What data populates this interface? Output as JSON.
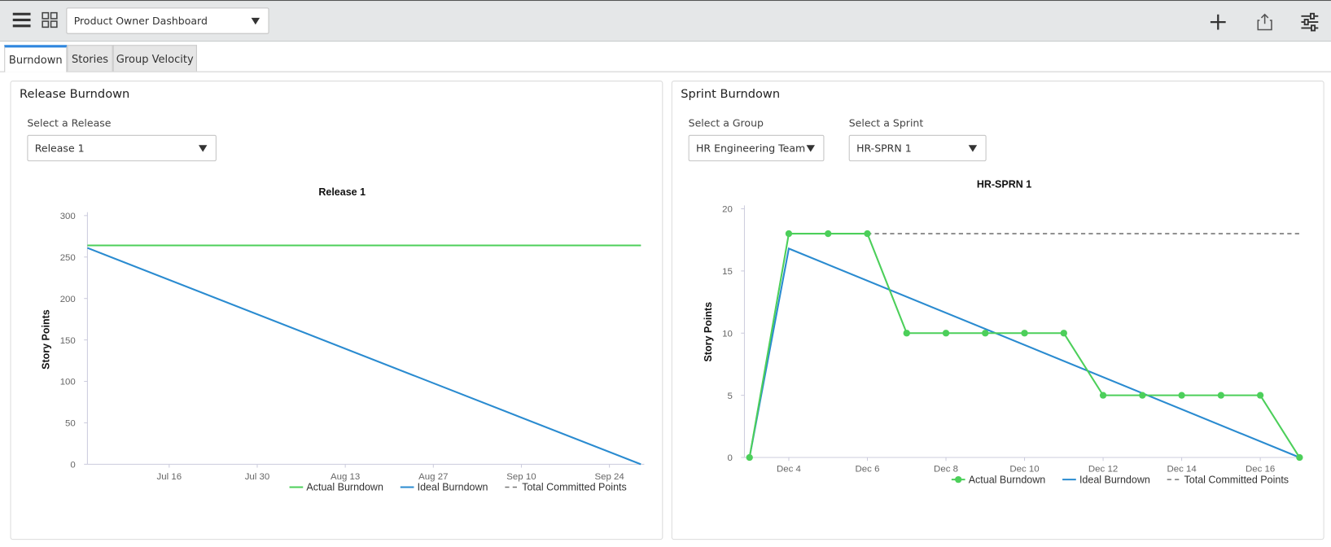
{
  "header": {
    "dashboard_name": "Product Owner Dashboard"
  },
  "tabs": [
    "Burndown",
    "Stories",
    "Group Velocity"
  ],
  "release_panel": {
    "title": "Release Burndown",
    "select_label": "Select a Release",
    "select_value": "Release 1"
  },
  "sprint_panel": {
    "title": "Sprint Burndown",
    "group_label": "Select a Group",
    "group_value": "HR Engineering Team",
    "sprint_label": "Select a Sprint",
    "sprint_value": "HR-SPRN 1"
  },
  "chart_data": [
    {
      "type": "line",
      "title": "Release 1",
      "y_label": "Story Points",
      "xlim": [
        "Jul 3",
        "Sep 29"
      ],
      "xticks": [
        "Jul 16",
        "Jul 30",
        "Aug 13",
        "Aug 27",
        "Sep 10",
        "Sep 24"
      ],
      "ylim": [
        0,
        300
      ],
      "yticks": [
        0,
        50,
        100,
        150,
        200,
        250,
        300
      ],
      "series": [
        {
          "name": "Actual Burndown",
          "color": "#4ccf5a",
          "x": [
            "Jul 3",
            "Sep 29"
          ],
          "values": [
            264,
            264
          ]
        },
        {
          "name": "Ideal Burndown",
          "color": "#2a8bd0",
          "x": [
            "Jul 3",
            "Sep 29"
          ],
          "values": [
            261,
            0
          ]
        },
        {
          "name": "Total Committed Points",
          "color": "#777777",
          "dashed": true,
          "x": [
            "Jul 3",
            "Sep 29"
          ],
          "values": [
            264,
            264
          ]
        }
      ]
    },
    {
      "type": "line",
      "title": "HR-SPRN 1",
      "y_label": "Story Points",
      "xlim": [
        "Dec 3",
        "Dec 17"
      ],
      "xticks": [
        "Dec 4",
        "Dec 6",
        "Dec 8",
        "Dec 10",
        "Dec 12",
        "Dec 14",
        "Dec 16"
      ],
      "ylim": [
        0,
        20
      ],
      "yticks": [
        0,
        5,
        10,
        15,
        20
      ],
      "series": [
        {
          "name": "Actual Burndown",
          "color": "#4ccf5a",
          "markers": true,
          "x": [
            "Dec 3",
            "Dec 4",
            "Dec 5",
            "Dec 6",
            "Dec 7",
            "Dec 8",
            "Dec 9",
            "Dec 10",
            "Dec 11",
            "Dec 12",
            "Dec 13",
            "Dec 14",
            "Dec 15",
            "Dec 16",
            "Dec 17"
          ],
          "values": [
            0,
            18,
            18,
            18,
            10,
            10,
            10,
            10,
            10,
            5,
            5,
            5,
            5,
            5,
            0
          ]
        },
        {
          "name": "Ideal Burndown",
          "color": "#2a8bd0",
          "x": [
            "Dec 3",
            "Dec 4",
            "Dec 17"
          ],
          "values": [
            0,
            16.8,
            0
          ]
        },
        {
          "name": "Total Committed Points",
          "color": "#777777",
          "dashed": true,
          "x": [
            "Dec 3",
            "Dec 4",
            "Dec 17"
          ],
          "values": [
            0,
            18,
            18
          ]
        }
      ]
    }
  ]
}
